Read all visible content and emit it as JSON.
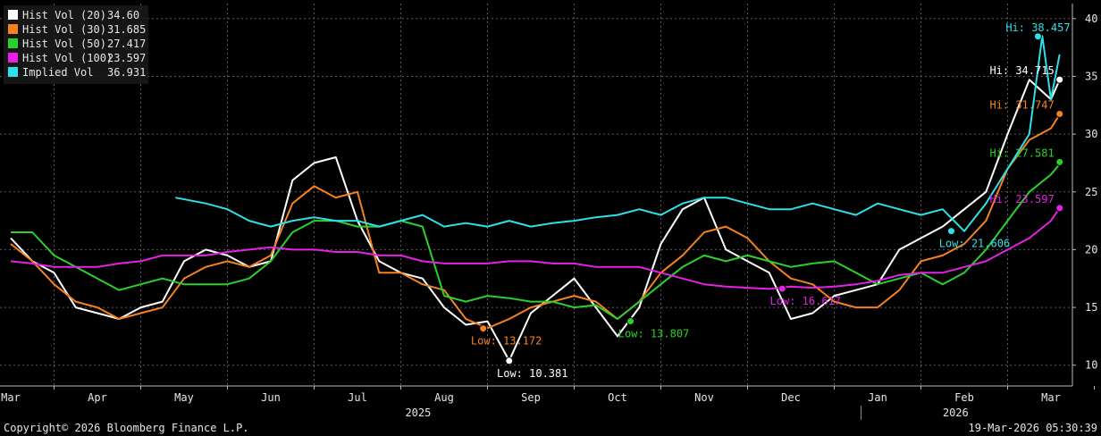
{
  "chart_data": {
    "type": "line",
    "x_labels": [
      "Mar",
      "Apr",
      "May",
      "Jun",
      "Jul",
      "Aug",
      "Sep",
      "Oct",
      "Nov",
      "Dec",
      "Jan",
      "Feb",
      "Mar"
    ],
    "year_labels": [
      "2025",
      "2026"
    ],
    "y_ticks": [
      10,
      15,
      20,
      25,
      30,
      35,
      40
    ],
    "ylim": [
      8.2,
      41.3
    ],
    "grid": true,
    "legend_position": "top-left",
    "series": [
      {
        "name": "Hist Vol (20)",
        "last": "34.60",
        "color": "#ffffff",
        "x": [
          0,
          0.25,
          0.5,
          0.75,
          1,
          1.25,
          1.5,
          1.75,
          2,
          2.25,
          2.5,
          2.75,
          3,
          3.25,
          3.5,
          3.75,
          4,
          4.25,
          4.5,
          4.75,
          5,
          5.25,
          5.5,
          5.75,
          6,
          6.25,
          6.5,
          6.75,
          7,
          7.25,
          7.5,
          7.75,
          8,
          8.25,
          8.5,
          8.75,
          9,
          9.25,
          9.5,
          9.75,
          10,
          10.25,
          10.5,
          10.75,
          11,
          11.25,
          11.5,
          11.75,
          12,
          12.1
        ],
        "y": [
          21.0,
          19.0,
          18.0,
          15.0,
          14.5,
          14.0,
          15.0,
          15.5,
          19.0,
          20.0,
          19.5,
          18.5,
          19.0,
          26.0,
          27.5,
          28.0,
          22.5,
          19.0,
          18.0,
          17.5,
          15.0,
          13.5,
          13.8,
          10.4,
          14.5,
          16.0,
          17.5,
          15.0,
          12.5,
          15.0,
          20.5,
          23.5,
          24.5,
          20.0,
          19.0,
          18.0,
          14.0,
          14.5,
          16.0,
          16.5,
          17.0,
          20.0,
          21.0,
          22.0,
          23.5,
          25.0,
          30.0,
          34.7,
          33.0,
          34.7
        ]
      },
      {
        "name": "Hist Vol (30)",
        "last": "31.685",
        "color": "#f58220",
        "x": [
          0,
          0.25,
          0.5,
          0.75,
          1,
          1.25,
          1.5,
          1.75,
          2,
          2.25,
          2.5,
          2.75,
          3,
          3.25,
          3.5,
          3.75,
          4,
          4.25,
          4.5,
          4.75,
          5,
          5.25,
          5.5,
          5.75,
          6,
          6.25,
          6.5,
          6.75,
          7,
          7.25,
          7.5,
          7.75,
          8,
          8.25,
          8.5,
          8.75,
          9,
          9.25,
          9.5,
          9.75,
          10,
          10.25,
          10.5,
          10.75,
          11,
          11.25,
          11.5,
          11.75,
          12,
          12.1
        ],
        "y": [
          20.5,
          19.0,
          17.0,
          15.5,
          15.0,
          14.0,
          14.5,
          15.0,
          17.5,
          18.5,
          19.0,
          18.5,
          19.5,
          24.0,
          25.5,
          24.5,
          25.0,
          18.0,
          18.0,
          17.0,
          16.5,
          14.0,
          13.2,
          14.0,
          15.0,
          15.5,
          16.0,
          15.5,
          14.0,
          15.5,
          18.0,
          19.5,
          21.5,
          22.0,
          21.0,
          19.0,
          17.5,
          17.0,
          15.5,
          15.0,
          15.0,
          16.5,
          19.0,
          19.5,
          20.5,
          22.5,
          27.0,
          29.5,
          30.5,
          31.7
        ]
      },
      {
        "name": "Hist Vol (50)",
        "last": "27.417",
        "color": "#2bd12b",
        "x": [
          0,
          0.25,
          0.5,
          0.75,
          1,
          1.25,
          1.5,
          1.75,
          2,
          2.25,
          2.5,
          2.75,
          3,
          3.25,
          3.5,
          3.75,
          4,
          4.25,
          4.5,
          4.75,
          5,
          5.25,
          5.5,
          5.75,
          6,
          6.25,
          6.5,
          6.75,
          7,
          7.25,
          7.5,
          7.75,
          8,
          8.25,
          8.5,
          8.75,
          9,
          9.25,
          9.5,
          9.75,
          10,
          10.25,
          10.5,
          10.75,
          11,
          11.25,
          11.5,
          11.75,
          12,
          12.1
        ],
        "y": [
          21.5,
          21.5,
          19.5,
          18.5,
          17.5,
          16.5,
          17.0,
          17.5,
          17.0,
          17.0,
          17.0,
          17.5,
          19.0,
          21.5,
          22.5,
          22.5,
          22.0,
          22.0,
          22.5,
          22.0,
          16.0,
          15.5,
          16.0,
          15.8,
          15.5,
          15.5,
          15.0,
          15.2,
          14.0,
          15.5,
          17.0,
          18.5,
          19.5,
          19.0,
          19.5,
          19.0,
          18.5,
          18.8,
          19.0,
          18.0,
          17.0,
          17.5,
          18.0,
          17.0,
          18.0,
          20.0,
          22.5,
          25.0,
          26.5,
          27.4
        ]
      },
      {
        "name": "Hist Vol (100)",
        "last": "23.597",
        "color": "#e620e6",
        "x": [
          0,
          0.25,
          0.5,
          0.75,
          1,
          1.25,
          1.5,
          1.75,
          2,
          2.25,
          2.5,
          2.75,
          3,
          3.25,
          3.5,
          3.75,
          4,
          4.25,
          4.5,
          4.75,
          5,
          5.25,
          5.5,
          5.75,
          6,
          6.25,
          6.5,
          6.75,
          7,
          7.25,
          7.5,
          7.75,
          8,
          8.25,
          8.5,
          8.75,
          9,
          9.25,
          9.5,
          9.75,
          10,
          10.25,
          10.5,
          10.75,
          11,
          11.25,
          11.5,
          11.75,
          12,
          12.1
        ],
        "y": [
          19.0,
          18.8,
          18.5,
          18.5,
          18.5,
          18.8,
          19.0,
          19.5,
          19.5,
          19.5,
          19.8,
          20.0,
          20.2,
          20.0,
          20.0,
          19.8,
          19.8,
          19.5,
          19.5,
          19.0,
          18.8,
          18.8,
          18.8,
          19.0,
          19.0,
          18.8,
          18.8,
          18.5,
          18.5,
          18.5,
          18.0,
          17.5,
          17.0,
          16.8,
          16.7,
          16.6,
          16.8,
          16.7,
          16.8,
          17.0,
          17.3,
          17.8,
          18.0,
          18.0,
          18.5,
          19.0,
          20.0,
          21.0,
          22.5,
          23.6
        ]
      },
      {
        "name": "Implied Vol",
        "last": "36.931",
        "color": "#2ee0e8",
        "x": [
          1.9,
          2.25,
          2.5,
          2.75,
          3,
          3.25,
          3.5,
          3.75,
          4,
          4.25,
          4.5,
          4.75,
          5,
          5.25,
          5.5,
          5.75,
          6,
          6.25,
          6.5,
          6.75,
          7,
          7.25,
          7.5,
          7.75,
          8,
          8.25,
          8.5,
          8.75,
          9,
          9.25,
          9.5,
          9.75,
          10,
          10.25,
          10.5,
          10.75,
          11,
          11.25,
          11.5,
          11.75,
          11.9,
          12,
          12.1
        ],
        "y": [
          24.5,
          24.0,
          23.5,
          22.5,
          22.0,
          22.5,
          22.8,
          22.5,
          22.5,
          22.0,
          22.5,
          23.0,
          22.0,
          22.3,
          22.0,
          22.5,
          22.0,
          22.3,
          22.5,
          22.8,
          23.0,
          23.5,
          23.0,
          24.0,
          24.5,
          24.5,
          24.0,
          23.5,
          23.5,
          24.0,
          23.5,
          23.0,
          24.0,
          23.5,
          23.0,
          23.5,
          21.6,
          24.0,
          27.0,
          30.0,
          38.5,
          33.0,
          36.9
        ]
      }
    ],
    "annotations": [
      {
        "series": 0,
        "x": 5.75,
        "y": 10.381,
        "text": "Low: 10.381",
        "pos": "below"
      },
      {
        "series": 1,
        "x": 5.45,
        "y": 13.172,
        "text": "Low: 13.172",
        "pos": "below"
      },
      {
        "series": 2,
        "x": 7.15,
        "y": 13.807,
        "text": "Low: 13.807",
        "pos": "below"
      },
      {
        "series": 3,
        "x": 8.9,
        "y": 16.617,
        "text": "Low: 16.617",
        "pos": "below"
      },
      {
        "series": 4,
        "x": 10.85,
        "y": 21.606,
        "text": "Low: 21.606",
        "pos": "below"
      },
      {
        "series": 4,
        "x": 11.85,
        "y": 38.457,
        "text": "Hi: 38.457",
        "pos": "above"
      },
      {
        "series": 0,
        "x": 12.1,
        "y": 34.715,
        "text": "Hi: 34.715",
        "pos": "left"
      },
      {
        "series": 1,
        "x": 12.1,
        "y": 31.747,
        "text": "Hi: 31.747",
        "pos": "left"
      },
      {
        "series": 2,
        "x": 12.1,
        "y": 27.581,
        "text": "Hi: 27.581",
        "pos": "left"
      },
      {
        "series": 3,
        "x": 12.1,
        "y": 23.597,
        "text": "Hi: 23.597",
        "pos": "left"
      }
    ]
  },
  "footer": {
    "copyright": "Copyright© 2026 Bloomberg Finance L.P.",
    "timestamp": "19-Mar-2026 05:30:39"
  }
}
